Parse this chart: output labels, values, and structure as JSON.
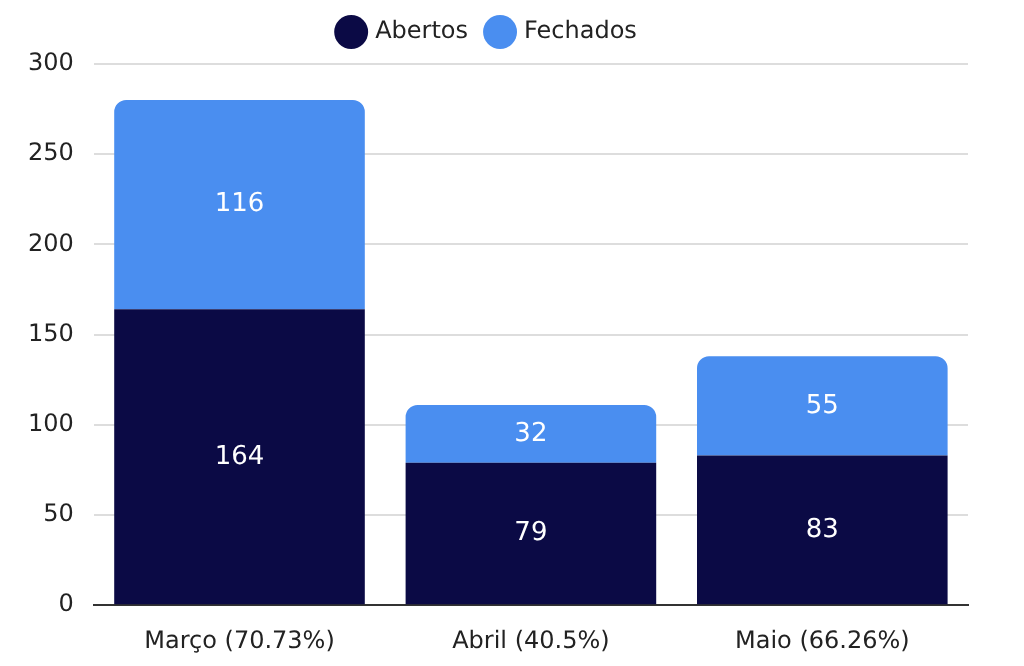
{
  "chart_data": {
    "type": "bar",
    "stacked": true,
    "categories": [
      "Março (70.73%)",
      "Abril (40.5%)",
      "Maio (66.26%)"
    ],
    "series": [
      {
        "name": "Abertos",
        "color": "#0b0a45",
        "values": [
          164,
          79,
          83
        ]
      },
      {
        "name": "Fechados",
        "color": "#4a8ef0",
        "values": [
          116,
          32,
          55
        ]
      }
    ],
    "ylim": [
      0,
      300
    ],
    "yticks": [
      0,
      50,
      100,
      150,
      200,
      250,
      300
    ],
    "grid": "y",
    "legend": "top",
    "data_labels": true
  }
}
